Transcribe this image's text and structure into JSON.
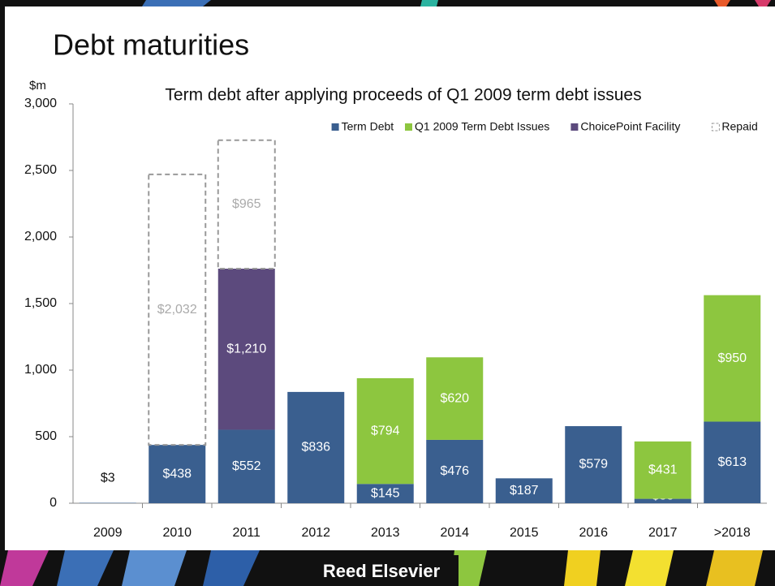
{
  "title": "Debt maturities",
  "logo": "Reed Elsevier",
  "chart_data": {
    "type": "bar",
    "stacked": true,
    "subtitle": "Term debt after applying proceeds of Q1 2009 term debt issues",
    "y_unit": "$m",
    "categories": [
      "2009",
      "2010",
      "2011",
      "2012",
      "2013",
      "2014",
      "2015",
      "2016",
      "2017",
      ">2018"
    ],
    "series": [
      {
        "name": "Term Debt",
        "color": "#3a5f8f",
        "label_color": "#ffffff",
        "values": [
          3,
          438,
          552,
          836,
          145,
          476,
          187,
          579,
          33,
          613
        ],
        "value_labels": [
          "$3",
          "$438",
          "$552",
          "$836",
          "$145",
          "$476",
          "$187",
          "$579",
          "$33",
          "$613"
        ]
      },
      {
        "name": "Q1 2009 Term Debt Issues",
        "color": "#8dc63f",
        "label_color": "#ffffff",
        "values": [
          null,
          null,
          null,
          null,
          794,
          620,
          null,
          null,
          431,
          950
        ],
        "value_labels": [
          null,
          null,
          null,
          null,
          "$794",
          "$620",
          null,
          null,
          "$431",
          "$950"
        ]
      },
      {
        "name": "ChoicePoint Facility",
        "color": "#5c4a7d",
        "label_color": "#ffffff",
        "values": [
          null,
          null,
          1210,
          null,
          null,
          null,
          null,
          null,
          null,
          null
        ],
        "value_labels": [
          null,
          null,
          "$1,210",
          null,
          null,
          null,
          null,
          null,
          null,
          null
        ]
      },
      {
        "name": "Repaid",
        "color": "#999999",
        "label_color": "#aaaaaa",
        "dashed": true,
        "values": [
          null,
          2032,
          965,
          null,
          null,
          null,
          null,
          null,
          null,
          null
        ],
        "value_labels": [
          null,
          "$2,032",
          "$965",
          null,
          null,
          null,
          null,
          null,
          null,
          null
        ]
      }
    ],
    "ylim": [
      0,
      3000
    ],
    "yticks": [
      0,
      500,
      {
        "value": 1000,
        "label": "1,000"
      },
      {
        "value": 1500,
        "label": "1,500"
      },
      {
        "value": 2000,
        "label": "2,000"
      },
      {
        "value": 2500,
        "label": "2,500"
      },
      {
        "value": 3000,
        "label": "3,000"
      }
    ],
    "legend": "top-right"
  }
}
